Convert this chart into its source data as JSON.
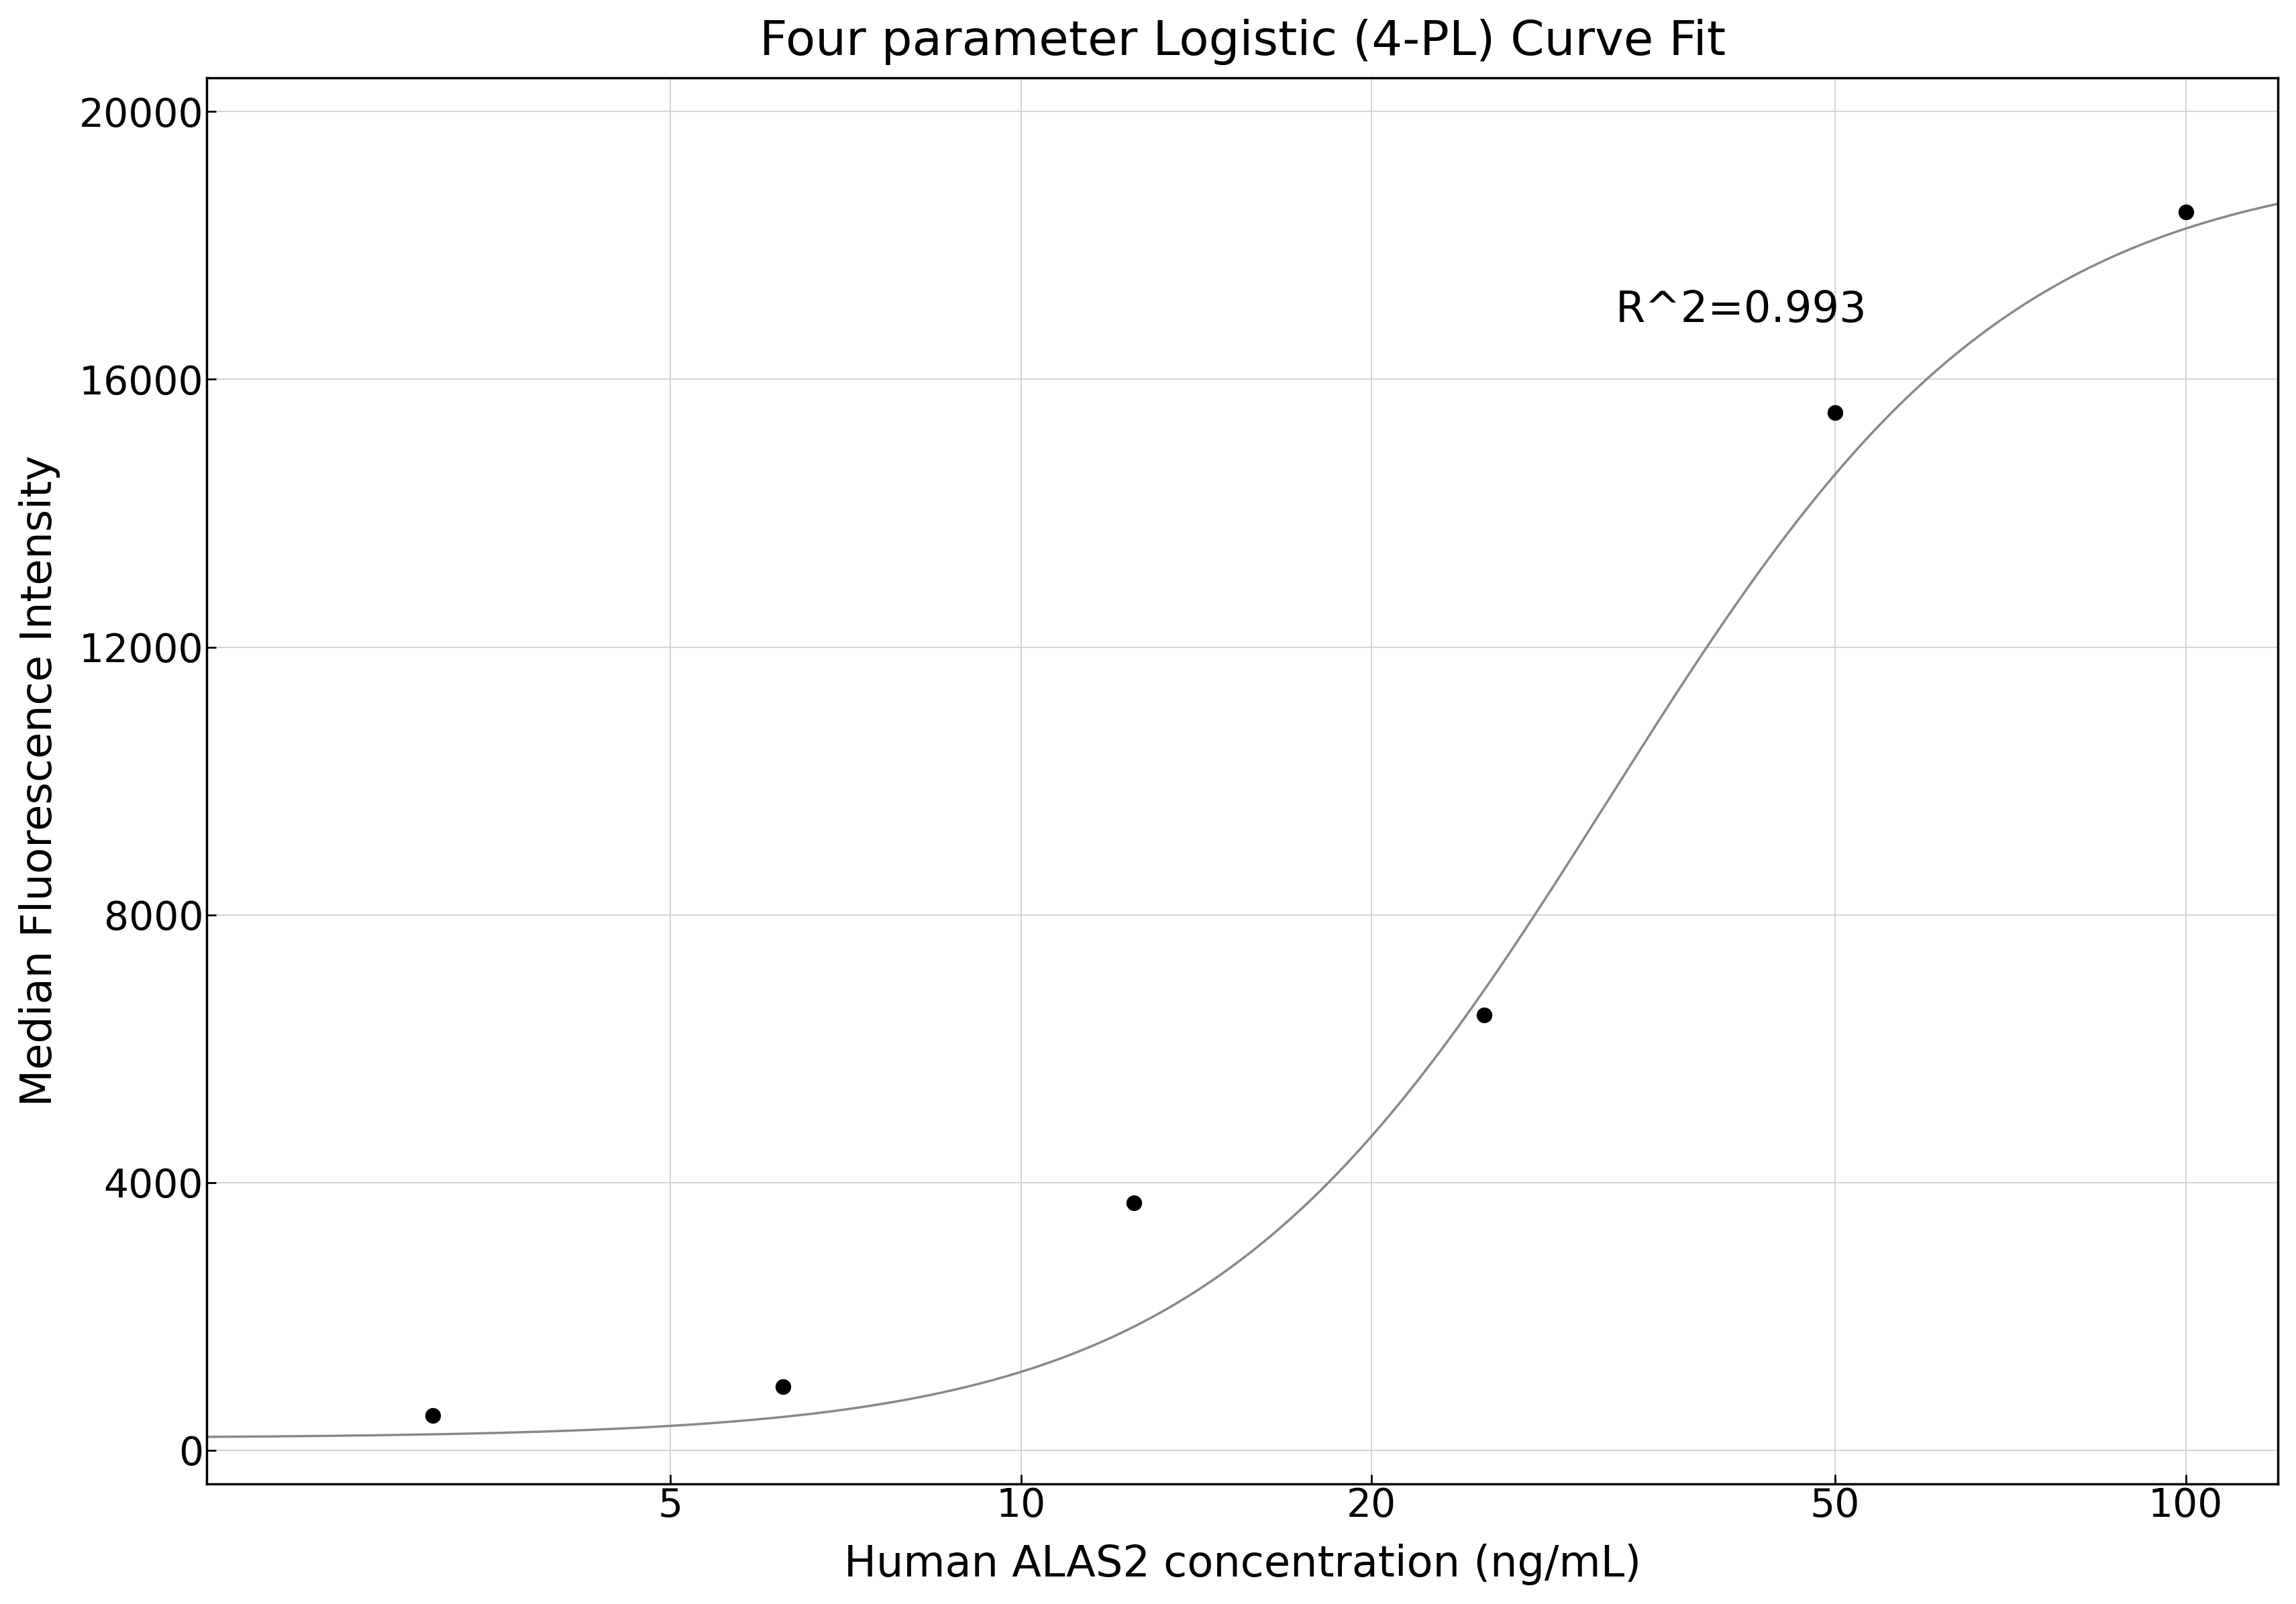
{
  "title": "Four parameter Logistic (4-PL) Curve Fit",
  "xlabel": "Human ALAS2 concentration (ng/mL)",
  "ylabel": "Median Fluorescence Intensity",
  "r_squared_text": "R^2=0.993",
  "data_x": [
    3.125,
    6.25,
    12.5,
    25,
    50,
    100
  ],
  "data_y": [
    520,
    950,
    3700,
    6500,
    15500,
    18500
  ],
  "xlim": [
    2.0,
    120
  ],
  "ylim": [
    -500,
    20500
  ],
  "yticks": [
    0,
    4000,
    8000,
    12000,
    16000,
    20000
  ],
  "xticks": [
    5,
    10,
    20,
    50,
    100
  ],
  "curve_color": "#888888",
  "dot_color": "#000000",
  "background_color": "#ffffff",
  "grid_color": "#cccccc",
  "title_fontsize": 52,
  "label_fontsize": 46,
  "tick_fontsize": 42,
  "annotation_fontsize": 46,
  "4pl_A": 180,
  "4pl_B": 2.5,
  "4pl_C": 32.0,
  "4pl_D": 19300
}
